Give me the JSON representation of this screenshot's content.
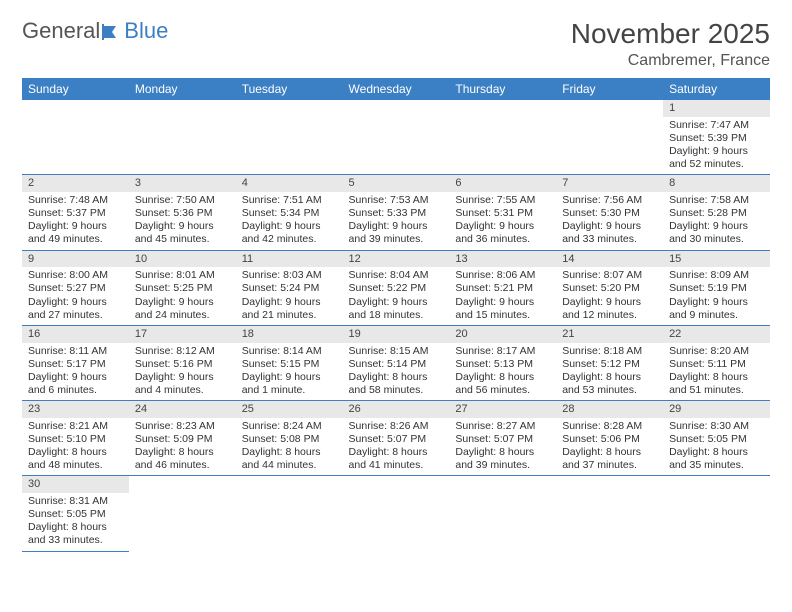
{
  "logo": {
    "part1": "General",
    "part2": "Blue"
  },
  "title": "November 2025",
  "location": "Cambremer, France",
  "colors": {
    "header_bg": "#3b7fc4",
    "header_text": "#ffffff",
    "daynum_bg": "#e8e8e8",
    "row_border": "#3b7fc4",
    "text": "#333333",
    "logo_accent": "#3b7fc4"
  },
  "day_headers": [
    "Sunday",
    "Monday",
    "Tuesday",
    "Wednesday",
    "Thursday",
    "Friday",
    "Saturday"
  ],
  "weeks": [
    {
      "nums": [
        "",
        "",
        "",
        "",
        "",
        "",
        "1"
      ],
      "cells": [
        null,
        null,
        null,
        null,
        null,
        null,
        {
          "sunrise": "7:47 AM",
          "sunset": "5:39 PM",
          "daylight": "9 hours and 52 minutes."
        }
      ]
    },
    {
      "nums": [
        "2",
        "3",
        "4",
        "5",
        "6",
        "7",
        "8"
      ],
      "cells": [
        {
          "sunrise": "7:48 AM",
          "sunset": "5:37 PM",
          "daylight": "9 hours and 49 minutes."
        },
        {
          "sunrise": "7:50 AM",
          "sunset": "5:36 PM",
          "daylight": "9 hours and 45 minutes."
        },
        {
          "sunrise": "7:51 AM",
          "sunset": "5:34 PM",
          "daylight": "9 hours and 42 minutes."
        },
        {
          "sunrise": "7:53 AM",
          "sunset": "5:33 PM",
          "daylight": "9 hours and 39 minutes."
        },
        {
          "sunrise": "7:55 AM",
          "sunset": "5:31 PM",
          "daylight": "9 hours and 36 minutes."
        },
        {
          "sunrise": "7:56 AM",
          "sunset": "5:30 PM",
          "daylight": "9 hours and 33 minutes."
        },
        {
          "sunrise": "7:58 AM",
          "sunset": "5:28 PM",
          "daylight": "9 hours and 30 minutes."
        }
      ]
    },
    {
      "nums": [
        "9",
        "10",
        "11",
        "12",
        "13",
        "14",
        "15"
      ],
      "cells": [
        {
          "sunrise": "8:00 AM",
          "sunset": "5:27 PM",
          "daylight": "9 hours and 27 minutes."
        },
        {
          "sunrise": "8:01 AM",
          "sunset": "5:25 PM",
          "daylight": "9 hours and 24 minutes."
        },
        {
          "sunrise": "8:03 AM",
          "sunset": "5:24 PM",
          "daylight": "9 hours and 21 minutes."
        },
        {
          "sunrise": "8:04 AM",
          "sunset": "5:22 PM",
          "daylight": "9 hours and 18 minutes."
        },
        {
          "sunrise": "8:06 AM",
          "sunset": "5:21 PM",
          "daylight": "9 hours and 15 minutes."
        },
        {
          "sunrise": "8:07 AM",
          "sunset": "5:20 PM",
          "daylight": "9 hours and 12 minutes."
        },
        {
          "sunrise": "8:09 AM",
          "sunset": "5:19 PM",
          "daylight": "9 hours and 9 minutes."
        }
      ]
    },
    {
      "nums": [
        "16",
        "17",
        "18",
        "19",
        "20",
        "21",
        "22"
      ],
      "cells": [
        {
          "sunrise": "8:11 AM",
          "sunset": "5:17 PM",
          "daylight": "9 hours and 6 minutes."
        },
        {
          "sunrise": "8:12 AM",
          "sunset": "5:16 PM",
          "daylight": "9 hours and 4 minutes."
        },
        {
          "sunrise": "8:14 AM",
          "sunset": "5:15 PM",
          "daylight": "9 hours and 1 minute."
        },
        {
          "sunrise": "8:15 AM",
          "sunset": "5:14 PM",
          "daylight": "8 hours and 58 minutes."
        },
        {
          "sunrise": "8:17 AM",
          "sunset": "5:13 PM",
          "daylight": "8 hours and 56 minutes."
        },
        {
          "sunrise": "8:18 AM",
          "sunset": "5:12 PM",
          "daylight": "8 hours and 53 minutes."
        },
        {
          "sunrise": "8:20 AM",
          "sunset": "5:11 PM",
          "daylight": "8 hours and 51 minutes."
        }
      ]
    },
    {
      "nums": [
        "23",
        "24",
        "25",
        "26",
        "27",
        "28",
        "29"
      ],
      "cells": [
        {
          "sunrise": "8:21 AM",
          "sunset": "5:10 PM",
          "daylight": "8 hours and 48 minutes."
        },
        {
          "sunrise": "8:23 AM",
          "sunset": "5:09 PM",
          "daylight": "8 hours and 46 minutes."
        },
        {
          "sunrise": "8:24 AM",
          "sunset": "5:08 PM",
          "daylight": "8 hours and 44 minutes."
        },
        {
          "sunrise": "8:26 AM",
          "sunset": "5:07 PM",
          "daylight": "8 hours and 41 minutes."
        },
        {
          "sunrise": "8:27 AM",
          "sunset": "5:07 PM",
          "daylight": "8 hours and 39 minutes."
        },
        {
          "sunrise": "8:28 AM",
          "sunset": "5:06 PM",
          "daylight": "8 hours and 37 minutes."
        },
        {
          "sunrise": "8:30 AM",
          "sunset": "5:05 PM",
          "daylight": "8 hours and 35 minutes."
        }
      ]
    },
    {
      "nums": [
        "30",
        "",
        "",
        "",
        "",
        "",
        ""
      ],
      "cells": [
        {
          "sunrise": "8:31 AM",
          "sunset": "5:05 PM",
          "daylight": "8 hours and 33 minutes."
        },
        null,
        null,
        null,
        null,
        null,
        null
      ]
    }
  ],
  "labels": {
    "sunrise": "Sunrise: ",
    "sunset": "Sunset: ",
    "daylight": "Daylight: "
  }
}
